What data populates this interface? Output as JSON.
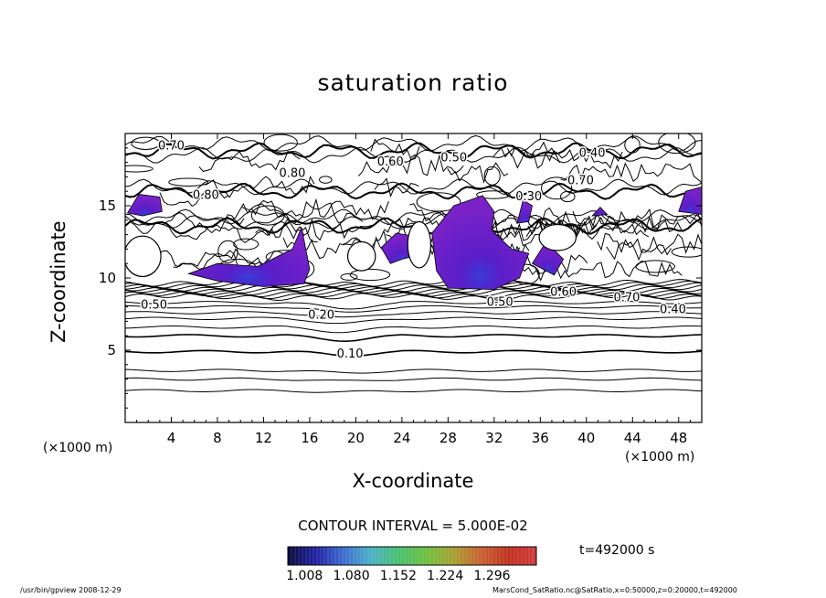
{
  "chart_data": {
    "type": "contour",
    "title": "saturation ratio",
    "xlabel": "X-coordinate",
    "ylabel": "Z-coordinate",
    "x_unit_label": "(×1000 m)",
    "xlim": [
      0,
      50
    ],
    "ylim": [
      0,
      20
    ],
    "x_ticks": [
      4,
      8,
      12,
      16,
      20,
      24,
      28,
      32,
      36,
      40,
      44,
      48
    ],
    "y_ticks": [
      5,
      10,
      15
    ],
    "contour_interval_text": "CONTOUR INTERVAL = 5.000E-02",
    "time_text": "t=492000  s",
    "colorbar": {
      "ticks": [
        "1.008",
        "1.080",
        "1.152",
        "1.224",
        "1.296"
      ],
      "colors": [
        "#0a0a3c",
        "#2020a0",
        "#3c6cd0",
        "#4cb0c8",
        "#48c070",
        "#6cc040",
        "#a8a030",
        "#c86030",
        "#c03020",
        "#d03c3c"
      ]
    },
    "contour_labels": [
      {
        "text": "0.10",
        "x": 19.5,
        "z": 4.7
      },
      {
        "text": "0.20",
        "x": 17.0,
        "z": 7.4
      },
      {
        "text": "0.40",
        "x": 47.5,
        "z": 7.8
      },
      {
        "text": "0.50",
        "x": 32.5,
        "z": 8.3
      },
      {
        "text": "0.60",
        "x": 38.0,
        "z": 9.0
      },
      {
        "text": "0.70",
        "x": 43.5,
        "z": 8.6
      },
      {
        "text": "0.50",
        "x": 2.5,
        "z": 8.1
      },
      {
        "text": "0.40",
        "x": 40.5,
        "z": 18.6
      },
      {
        "text": "0.50",
        "x": 28.5,
        "z": 18.3
      },
      {
        "text": "0.60",
        "x": 23.0,
        "z": 18.0
      },
      {
        "text": "0.80",
        "x": 14.5,
        "z": 17.2
      },
      {
        "text": "0.70",
        "x": 4.0,
        "z": 19.1
      },
      {
        "text": "0.80",
        "x": 7.0,
        "z": 15.7
      },
      {
        "text": "0.30",
        "x": 35.0,
        "z": 15.6
      },
      {
        "text": "0.70",
        "x": 39.5,
        "z": 16.7
      }
    ],
    "supersaturated_regions": [
      {
        "x": [
          0.2,
          3.2
        ],
        "z": [
          14.4,
          15.8
        ]
      },
      {
        "x": [
          48.0,
          50.0
        ],
        "z": [
          14.4,
          16.2
        ]
      },
      {
        "x": [
          5.5,
          16.0
        ],
        "z": [
          9.5,
          13.5
        ]
      },
      {
        "x": [
          22.0,
          26.0
        ],
        "z": [
          11.0,
          13.2
        ]
      },
      {
        "x": [
          26.5,
          35.0
        ],
        "z": [
          9.2,
          15.7
        ]
      },
      {
        "x": [
          35.2,
          38.0
        ],
        "z": [
          10.2,
          12.5
        ]
      },
      {
        "x": [
          40.5,
          41.8
        ],
        "z": [
          14.2,
          14.9
        ]
      }
    ],
    "grid": false
  },
  "footer": {
    "left": "/usr/bin/gpview   2008-12-29",
    "right": "MarsCond_SatRatio.nc@SatRatio,x=0:50000,z=0:20000,t=492000"
  }
}
